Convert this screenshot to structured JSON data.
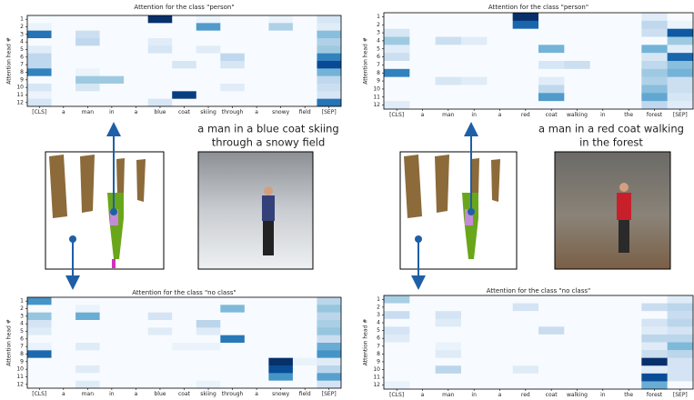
{
  "chart_data": [
    {
      "type": "heatmap",
      "title": "Attention for the class \"person\"",
      "ylabel": "Attention head #",
      "colormap": "Blues",
      "categories": [
        "[CLS]",
        "a",
        "man",
        "in",
        "a",
        "blue",
        "coat",
        "skiing",
        "through",
        "a",
        "snowy",
        "field",
        "[SEP]"
      ],
      "rows": [
        1,
        2,
        3,
        4,
        5,
        6,
        7,
        8,
        9,
        10,
        11,
        12
      ],
      "values": [
        [
          0.04,
          0.04,
          0.04,
          0.04,
          0.04,
          1,
          0.04,
          0.1,
          0.04,
          0.04,
          0.1,
          0.04,
          0.2
        ],
        [
          0.1,
          0.04,
          0.04,
          0.04,
          0.04,
          0.04,
          0.04,
          0.6,
          0.04,
          0.04,
          0.35,
          0.04,
          0.15
        ],
        [
          0.75,
          0.04,
          0.25,
          0.04,
          0.04,
          0.04,
          0.04,
          0.04,
          0.04,
          0.04,
          0.04,
          0.04,
          0.45
        ],
        [
          0.04,
          0.04,
          0.3,
          0.04,
          0.04,
          0.15,
          0.04,
          0.04,
          0.04,
          0.04,
          0.04,
          0.04,
          0.35
        ],
        [
          0.15,
          0.04,
          0.04,
          0.04,
          0.04,
          0.2,
          0.04,
          0.15,
          0.04,
          0.04,
          0.04,
          0.04,
          0.4
        ],
        [
          0.3,
          0.04,
          0.04,
          0.04,
          0.04,
          0.04,
          0.04,
          0.04,
          0.3,
          0.04,
          0.04,
          0.04,
          0.7
        ],
        [
          0.3,
          0.04,
          0.04,
          0.04,
          0.04,
          0.04,
          0.2,
          0.04,
          0.2,
          0.04,
          0.04,
          0.04,
          0.9
        ],
        [
          0.7,
          0.04,
          0.1,
          0.04,
          0.04,
          0.04,
          0.04,
          0.04,
          0.04,
          0.04,
          0.04,
          0.04,
          0.5
        ],
        [
          0.04,
          0.04,
          0.4,
          0.4,
          0.04,
          0.04,
          0.04,
          0.04,
          0.04,
          0.04,
          0.04,
          0.04,
          0.3
        ],
        [
          0.2,
          0.04,
          0.2,
          0.04,
          0.04,
          0.04,
          0.04,
          0.04,
          0.15,
          0.04,
          0.04,
          0.04,
          0.25
        ],
        [
          0.1,
          0.04,
          0.04,
          0.04,
          0.04,
          0.04,
          0.95,
          0.04,
          0.04,
          0.04,
          0.04,
          0.04,
          0.2
        ],
        [
          0.2,
          0.04,
          0.04,
          0.04,
          0.04,
          0.2,
          0.04,
          0.04,
          0.04,
          0.04,
          0.04,
          0.04,
          0.75
        ]
      ]
    },
    {
      "type": "heatmap",
      "title": "Attention for the class \"no class\"",
      "ylabel": "Attention head #",
      "colormap": "Blues",
      "categories": [
        "[CLS]",
        "a",
        "man",
        "in",
        "a",
        "blue",
        "coat",
        "skiing",
        "through",
        "a",
        "snowy",
        "field",
        "[SEP]"
      ],
      "rows": [
        1,
        2,
        3,
        4,
        5,
        6,
        7,
        8,
        9,
        10,
        11,
        12
      ],
      "values": [
        [
          0.6,
          0.04,
          0.04,
          0.04,
          0.04,
          0.04,
          0.04,
          0.04,
          0.04,
          0.04,
          0.04,
          0.04,
          0.3
        ],
        [
          0.04,
          0.04,
          0.1,
          0.04,
          0.04,
          0.04,
          0.04,
          0.04,
          0.45,
          0.04,
          0.04,
          0.04,
          0.4
        ],
        [
          0.4,
          0.04,
          0.5,
          0.04,
          0.04,
          0.2,
          0.04,
          0.04,
          0.04,
          0.04,
          0.04,
          0.04,
          0.3
        ],
        [
          0.2,
          0.04,
          0.04,
          0.04,
          0.04,
          0.04,
          0.04,
          0.3,
          0.04,
          0.04,
          0.04,
          0.04,
          0.35
        ],
        [
          0.15,
          0.04,
          0.04,
          0.04,
          0.04,
          0.15,
          0.04,
          0.15,
          0.04,
          0.04,
          0.04,
          0.04,
          0.4
        ],
        [
          0.04,
          0.04,
          0.04,
          0.04,
          0.04,
          0.04,
          0.04,
          0.04,
          0.7,
          0.04,
          0.04,
          0.04,
          0.25
        ],
        [
          0.1,
          0.04,
          0.15,
          0.04,
          0.04,
          0.04,
          0.1,
          0.1,
          0.04,
          0.04,
          0.04,
          0.04,
          0.5
        ],
        [
          0.75,
          0.04,
          0.04,
          0.04,
          0.04,
          0.04,
          0.04,
          0.04,
          0.04,
          0.04,
          0.04,
          0.04,
          0.6
        ],
        [
          0.04,
          0.04,
          0.04,
          0.04,
          0.04,
          0.04,
          0.04,
          0.04,
          0.04,
          0.04,
          0.95,
          0.1,
          0.15
        ],
        [
          0.04,
          0.04,
          0.15,
          0.04,
          0.04,
          0.04,
          0.04,
          0.04,
          0.04,
          0.04,
          0.85,
          0.04,
          0.3
        ],
        [
          0.04,
          0.04,
          0.04,
          0.04,
          0.04,
          0.04,
          0.04,
          0.04,
          0.04,
          0.04,
          0.6,
          0.04,
          0.55
        ],
        [
          0.04,
          0.04,
          0.15,
          0.04,
          0.04,
          0.04,
          0.04,
          0.1,
          0.04,
          0.04,
          0.04,
          0.04,
          0.2
        ]
      ]
    },
    {
      "type": "heatmap",
      "title": "Attention for the class \"person\"",
      "ylabel": "Attention head #",
      "colormap": "Blues",
      "categories": [
        "[CLS]",
        "a",
        "man",
        "in",
        "a",
        "red",
        "coat",
        "walking",
        "in",
        "the",
        "forest",
        "[SEP]"
      ],
      "rows": [
        1,
        2,
        3,
        4,
        5,
        6,
        7,
        8,
        9,
        10,
        11,
        12
      ],
      "values": [
        [
          0.04,
          0.04,
          0.04,
          0.04,
          0.04,
          1,
          0.04,
          0.04,
          0.04,
          0.04,
          0.15,
          0.04
        ],
        [
          0.04,
          0.04,
          0.04,
          0.04,
          0.04,
          0.8,
          0.04,
          0.04,
          0.04,
          0.04,
          0.3,
          0.1
        ],
        [
          0.2,
          0.04,
          0.04,
          0.04,
          0.04,
          0.04,
          0.04,
          0.04,
          0.04,
          0.04,
          0.25,
          0.85
        ],
        [
          0.4,
          0.04,
          0.25,
          0.15,
          0.04,
          0.04,
          0.04,
          0.04,
          0.04,
          0.04,
          0.04,
          0.4
        ],
        [
          0.15,
          0.04,
          0.04,
          0.04,
          0.04,
          0.04,
          0.5,
          0.04,
          0.04,
          0.04,
          0.5,
          0.15
        ],
        [
          0.25,
          0.04,
          0.04,
          0.04,
          0.04,
          0.04,
          0.04,
          0.04,
          0.04,
          0.04,
          0.2,
          0.8
        ],
        [
          0.04,
          0.04,
          0.04,
          0.04,
          0.04,
          0.04,
          0.2,
          0.25,
          0.04,
          0.04,
          0.3,
          0.45
        ],
        [
          0.7,
          0.04,
          0.04,
          0.04,
          0.04,
          0.04,
          0.04,
          0.04,
          0.04,
          0.04,
          0.4,
          0.5
        ],
        [
          0.04,
          0.04,
          0.2,
          0.15,
          0.04,
          0.04,
          0.15,
          0.04,
          0.04,
          0.04,
          0.35,
          0.25
        ],
        [
          0.04,
          0.04,
          0.04,
          0.04,
          0.04,
          0.04,
          0.3,
          0.04,
          0.04,
          0.04,
          0.45,
          0.25
        ],
        [
          0.04,
          0.04,
          0.04,
          0.04,
          0.04,
          0.04,
          0.6,
          0.04,
          0.04,
          0.04,
          0.55,
          0.2
        ],
        [
          0.15,
          0.04,
          0.04,
          0.04,
          0.04,
          0.04,
          0.04,
          0.04,
          0.04,
          0.04,
          0.3,
          0.15
        ]
      ]
    },
    {
      "type": "heatmap",
      "title": "Attention for the class \"no class\"",
      "ylabel": "Attention head #",
      "colormap": "Blues",
      "categories": [
        "[CLS]",
        "a",
        "man",
        "in",
        "a",
        "red",
        "coat",
        "walking",
        "in",
        "the",
        "forest",
        "[SEP]"
      ],
      "rows": [
        1,
        2,
        3,
        4,
        5,
        6,
        7,
        8,
        9,
        10,
        11,
        12
      ],
      "values": [
        [
          0.35,
          0.04,
          0.04,
          0.04,
          0.04,
          0.04,
          0.04,
          0.04,
          0.04,
          0.04,
          0.04,
          0.15
        ],
        [
          0.04,
          0.04,
          0.04,
          0.04,
          0.04,
          0.2,
          0.04,
          0.04,
          0.04,
          0.04,
          0.25,
          0.3
        ],
        [
          0.25,
          0.04,
          0.2,
          0.04,
          0.04,
          0.04,
          0.04,
          0.04,
          0.04,
          0.04,
          0.04,
          0.25
        ],
        [
          0.04,
          0.04,
          0.15,
          0.04,
          0.04,
          0.04,
          0.04,
          0.04,
          0.04,
          0.04,
          0.2,
          0.3
        ],
        [
          0.2,
          0.04,
          0.04,
          0.04,
          0.04,
          0.04,
          0.25,
          0.04,
          0.04,
          0.04,
          0.15,
          0.2
        ],
        [
          0.15,
          0.04,
          0.04,
          0.04,
          0.04,
          0.04,
          0.04,
          0.04,
          0.04,
          0.04,
          0.3,
          0.3
        ],
        [
          0.04,
          0.04,
          0.1,
          0.04,
          0.04,
          0.04,
          0.04,
          0.04,
          0.04,
          0.04,
          0.15,
          0.45
        ],
        [
          0.04,
          0.04,
          0.15,
          0.04,
          0.04,
          0.04,
          0.04,
          0.04,
          0.04,
          0.04,
          0.25,
          0.3
        ],
        [
          0.04,
          0.04,
          0.04,
          0.04,
          0.04,
          0.04,
          0.04,
          0.04,
          0.04,
          0.04,
          0.95,
          0.2
        ],
        [
          0.04,
          0.04,
          0.3,
          0.04,
          0.04,
          0.15,
          0.04,
          0.04,
          0.04,
          0.04,
          0.15,
          0.2
        ],
        [
          0.04,
          0.04,
          0.04,
          0.04,
          0.04,
          0.04,
          0.04,
          0.04,
          0.04,
          0.04,
          0.85,
          0.2
        ],
        [
          0.1,
          0.04,
          0.04,
          0.04,
          0.04,
          0.04,
          0.04,
          0.04,
          0.04,
          0.04,
          0.5,
          0.04
        ]
      ]
    }
  ],
  "captions": [
    [
      "a man in a blue coat skiing",
      "through a snowy field"
    ],
    [
      "a man in a red coat walking",
      "in the forest"
    ]
  ]
}
